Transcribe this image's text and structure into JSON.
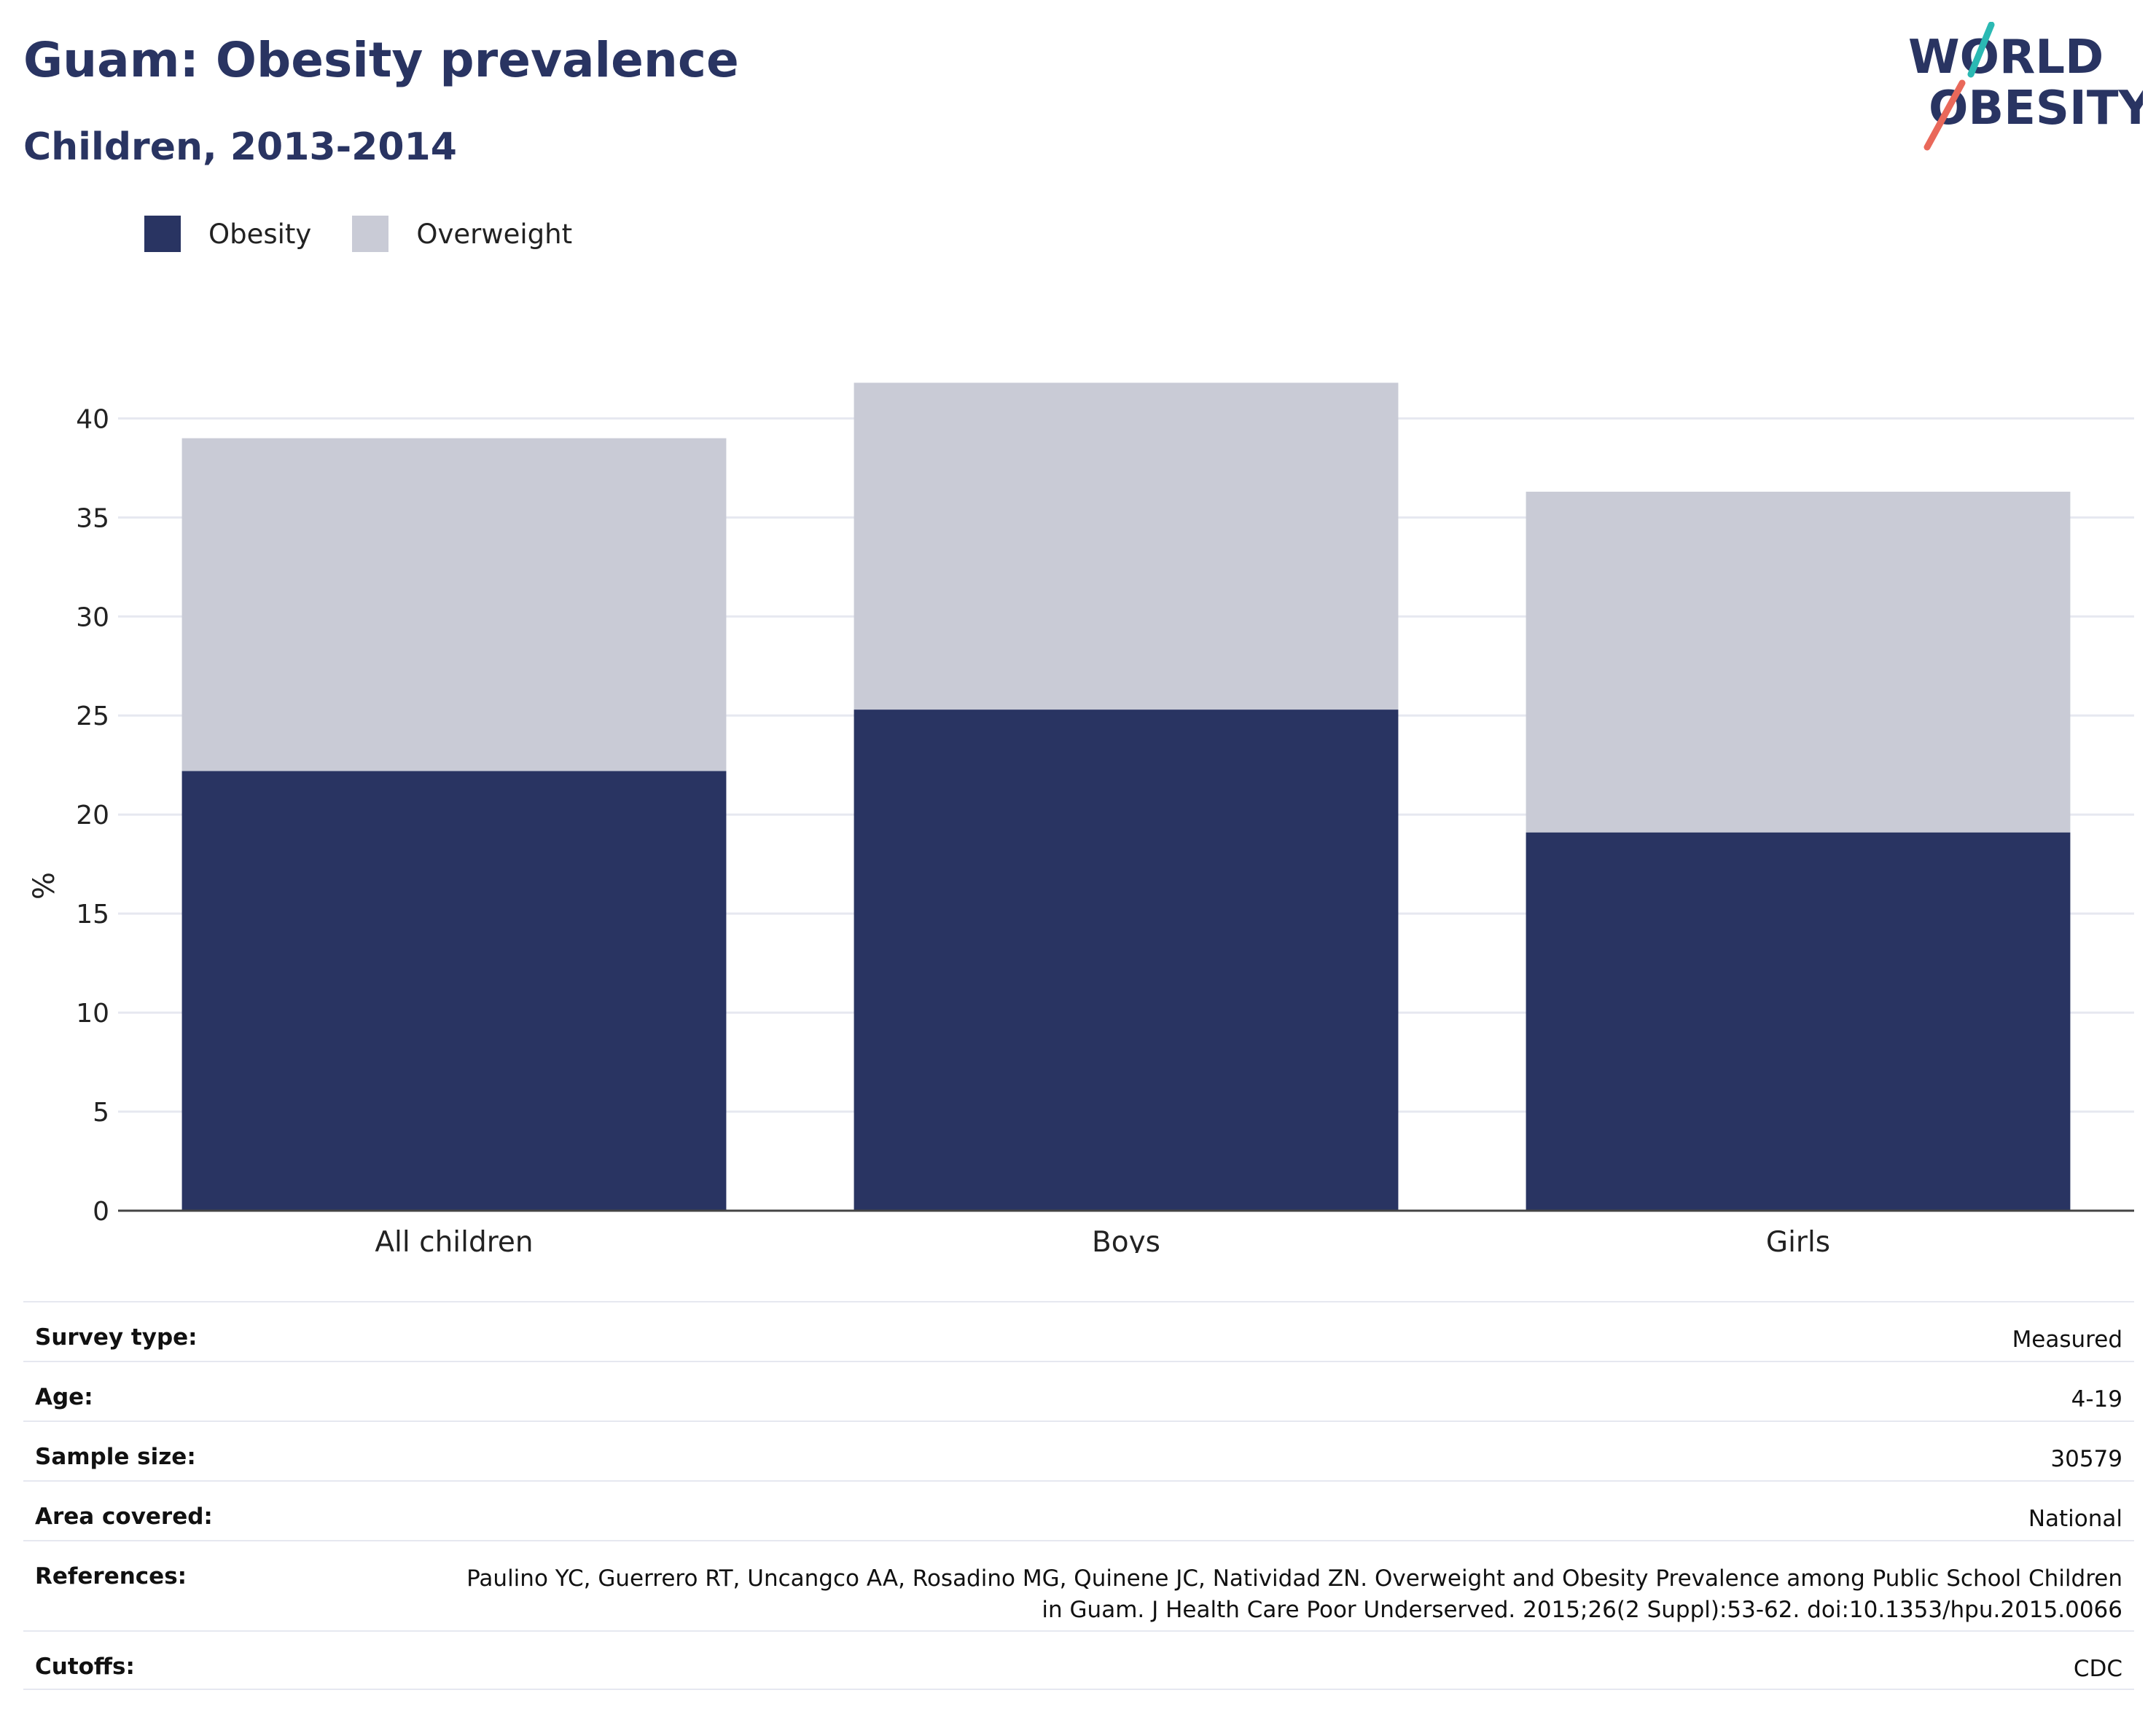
{
  "header": {
    "title": "Guam: Obesity prevalence",
    "subtitle": "Children, 2013-2014"
  },
  "logo": {
    "line1": "WORLD",
    "line2": "OBESITY"
  },
  "colors": {
    "obesity": "#293462",
    "overweight": "#c9cbd6",
    "gridline": "#e6e8f0",
    "logo_teal": "#2bb9b3",
    "logo_red": "#e9685a"
  },
  "chart_data": {
    "type": "bar",
    "stacked": true,
    "categories": [
      "All children",
      "Boys",
      "Girls"
    ],
    "series": [
      {
        "name": "Obesity",
        "values": [
          22.2,
          25.3,
          19.1
        ]
      },
      {
        "name": "Overweight",
        "values": [
          16.8,
          16.5,
          17.2
        ]
      }
    ],
    "ylabel": "%",
    "ylim": [
      0,
      42
    ],
    "yticks": [
      0,
      5,
      10,
      15,
      20,
      25,
      30,
      35,
      40
    ],
    "grid": true,
    "legend": "top-left"
  },
  "meta": [
    {
      "label": "Survey type:",
      "value": "Measured"
    },
    {
      "label": "Age:",
      "value": "4-19"
    },
    {
      "label": "Sample size:",
      "value": "30579"
    },
    {
      "label": "Area covered:",
      "value": "National"
    },
    {
      "label": "References:",
      "value": "Paulino YC, Guerrero RT, Uncangco AA, Rosadino MG, Quinene JC, Natividad ZN. Overweight and Obesity Prevalence among Public School Children in Guam. J Health Care Poor Underserved. 2015;26(2 Suppl):53-62. doi:10.1353/hpu.2015.0066"
    },
    {
      "label": "Cutoffs:",
      "value": "CDC"
    }
  ]
}
